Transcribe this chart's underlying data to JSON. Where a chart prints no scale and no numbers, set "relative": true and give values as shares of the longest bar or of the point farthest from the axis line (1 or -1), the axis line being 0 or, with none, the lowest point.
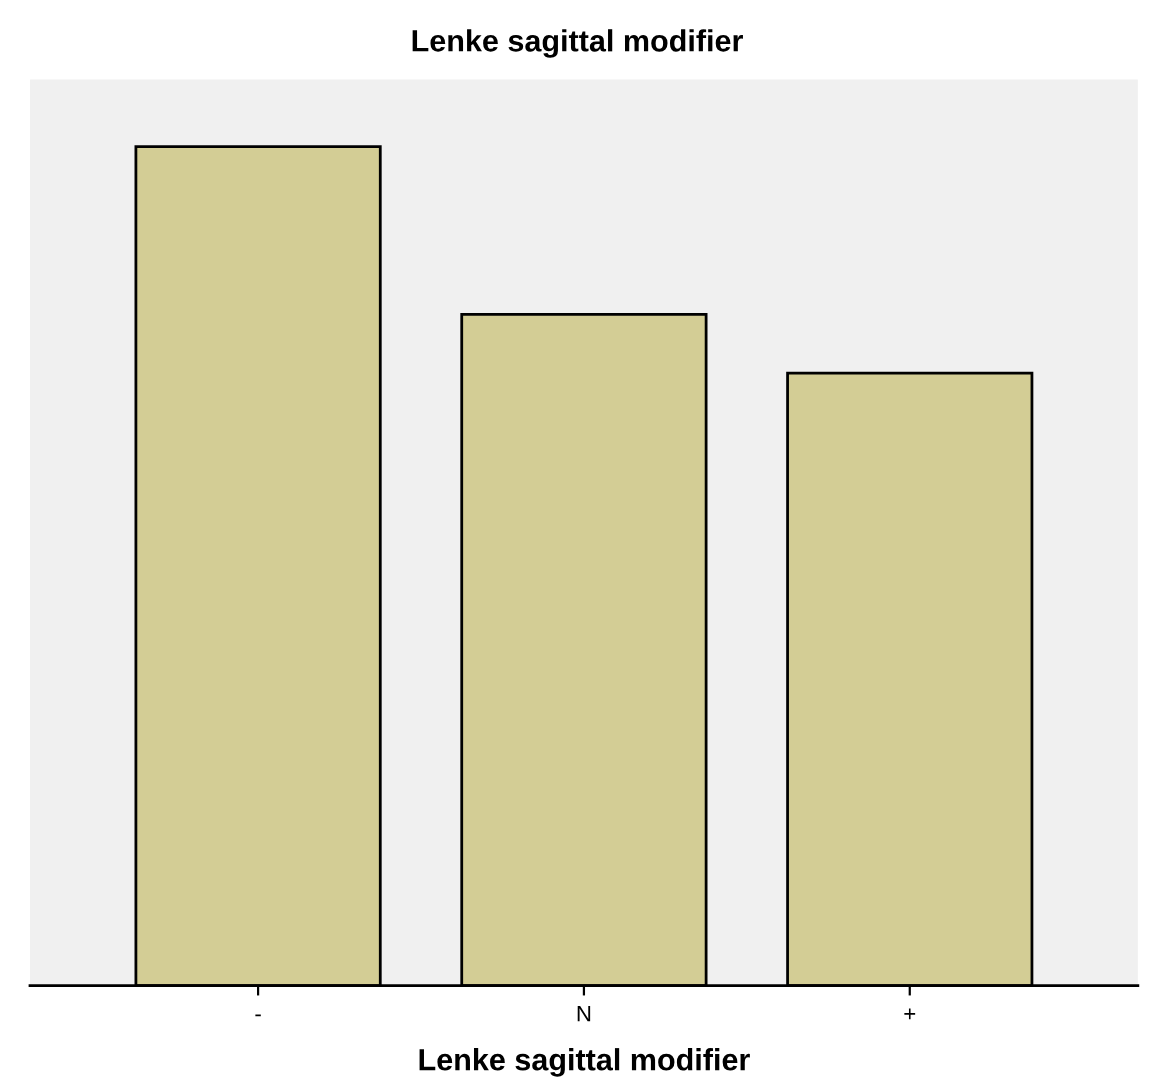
{
  "chart_data": {
    "type": "bar",
    "title": "Lenke sagittal modifier",
    "xlabel": "Lenke sagittal modifier",
    "categories": [
      "-",
      "N",
      "+"
    ],
    "values": [
      1,
      0.8,
      0.73
    ],
    "color": "#d3cd95",
    "relative": true,
    "grid": false,
    "legend": false
  }
}
